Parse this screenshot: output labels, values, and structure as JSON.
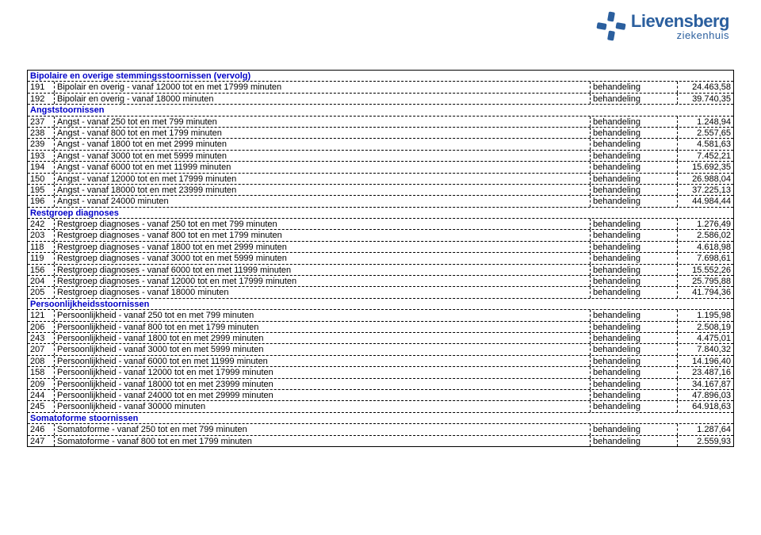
{
  "logo": {
    "line1": "Lievensberg",
    "line2": "ziekenhuis",
    "brand_color": "#2b5f9e"
  },
  "section_color": "#0000c8",
  "type_label": "behandeling",
  "sections": [
    {
      "title": "Bipolaire en overige stemmingsstoornissen (vervolg)",
      "rows": [
        {
          "code": "191",
          "desc": "Bipolair en overig - vanaf 12000 tot en met 17999 minuten",
          "price": "24.463,58"
        },
        {
          "code": "192",
          "desc": "Bipolair en overig - vanaf 18000 minuten",
          "price": "39.740,35"
        }
      ]
    },
    {
      "title": "Angststoornissen",
      "rows": [
        {
          "code": "237",
          "desc": "Angst - vanaf 250 tot en met 799 minuten",
          "price": "1.248,94"
        },
        {
          "code": "238",
          "desc": "Angst - vanaf 800 tot en met 1799 minuten",
          "price": "2.557,65"
        },
        {
          "code": "239",
          "desc": "Angst - vanaf 1800 tot en met 2999 minuten",
          "price": "4.581,63"
        },
        {
          "code": "193",
          "desc": "Angst - vanaf 3000 tot en met 5999 minuten",
          "price": "7.452,21"
        },
        {
          "code": "194",
          "desc": "Angst - vanaf 6000 tot en met 11999 minuten",
          "price": "15.692,35"
        },
        {
          "code": "150",
          "desc": "Angst - vanaf 12000 tot en met 17999 minuten",
          "price": "26.988,04"
        },
        {
          "code": "195",
          "desc": "Angst - vanaf 18000 tot en met 23999 minuten",
          "price": "37.225,13"
        },
        {
          "code": "196",
          "desc": "Angst - vanaf 24000 minuten",
          "price": "44.984,44"
        }
      ]
    },
    {
      "title": "Restgroep diagnoses",
      "rows": [
        {
          "code": "242",
          "desc": "Restgroep diagnoses - vanaf 250 tot en met 799 minuten",
          "price": "1.276,49"
        },
        {
          "code": "203",
          "desc": "Restgroep diagnoses - vanaf 800 tot en met 1799 minuten",
          "price": "2.586,02"
        },
        {
          "code": "118",
          "desc": "Restgroep diagnoses - vanaf 1800 tot en met 2999 minuten",
          "price": "4.618,98"
        },
        {
          "code": "119",
          "desc": "Restgroep diagnoses - vanaf 3000 tot en met 5999 minuten",
          "price": "7.698,61"
        },
        {
          "code": "156",
          "desc": "Restgroep diagnoses - vanaf 6000 tot en met 11999 minuten",
          "price": "15.552,26"
        },
        {
          "code": "204",
          "desc": "Restgroep diagnoses - vanaf 12000 tot en met 17999 minuten",
          "price": "25.795,88"
        },
        {
          "code": "205",
          "desc": "Restgroep diagnoses - vanaf 18000 minuten",
          "price": "41.794,36"
        }
      ]
    },
    {
      "title": "Persoonlijkheidsstoornissen",
      "rows": [
        {
          "code": "121",
          "desc": "Persoonlijkheid - vanaf 250 tot en met 799 minuten",
          "price": "1.195,98"
        },
        {
          "code": "206",
          "desc": "Persoonlijkheid - vanaf 800 tot en met 1799 minuten",
          "price": "2.508,19"
        },
        {
          "code": "243",
          "desc": "Persoonlijkheid - vanaf 1800 tot en met 2999 minuten",
          "price": "4.475,01"
        },
        {
          "code": "207",
          "desc": "Persoonlijkheid - vanaf 3000 tot en met 5999 minuten",
          "price": "7.840,32"
        },
        {
          "code": "208",
          "desc": "Persoonlijkheid - vanaf 6000 tot en met 11999 minuten",
          "price": "14.196,40"
        },
        {
          "code": "158",
          "desc": "Persoonlijkheid - vanaf 12000 tot en met 17999 minuten",
          "price": "23.487,16"
        },
        {
          "code": "209",
          "desc": "Persoonlijkheid - vanaf 18000 tot en met 23999 minuten",
          "price": "34.167,87"
        },
        {
          "code": "244",
          "desc": "Persoonlijkheid - vanaf 24000 tot en met 29999 minuten",
          "price": "47.896,03"
        },
        {
          "code": "245",
          "desc": "Persoonlijkheid - vanaf 30000 minuten",
          "price": "64.918,63"
        }
      ]
    },
    {
      "title": "Somatoforme stoornissen",
      "rows": [
        {
          "code": "246",
          "desc": "Somatoforme - vanaf 250 tot en met 799 minuten",
          "price": "1.287,64"
        },
        {
          "code": "247",
          "desc": "Somatoforme - vanaf 800 tot en met 1799 minuten",
          "price": "2.559,93"
        }
      ]
    }
  ]
}
